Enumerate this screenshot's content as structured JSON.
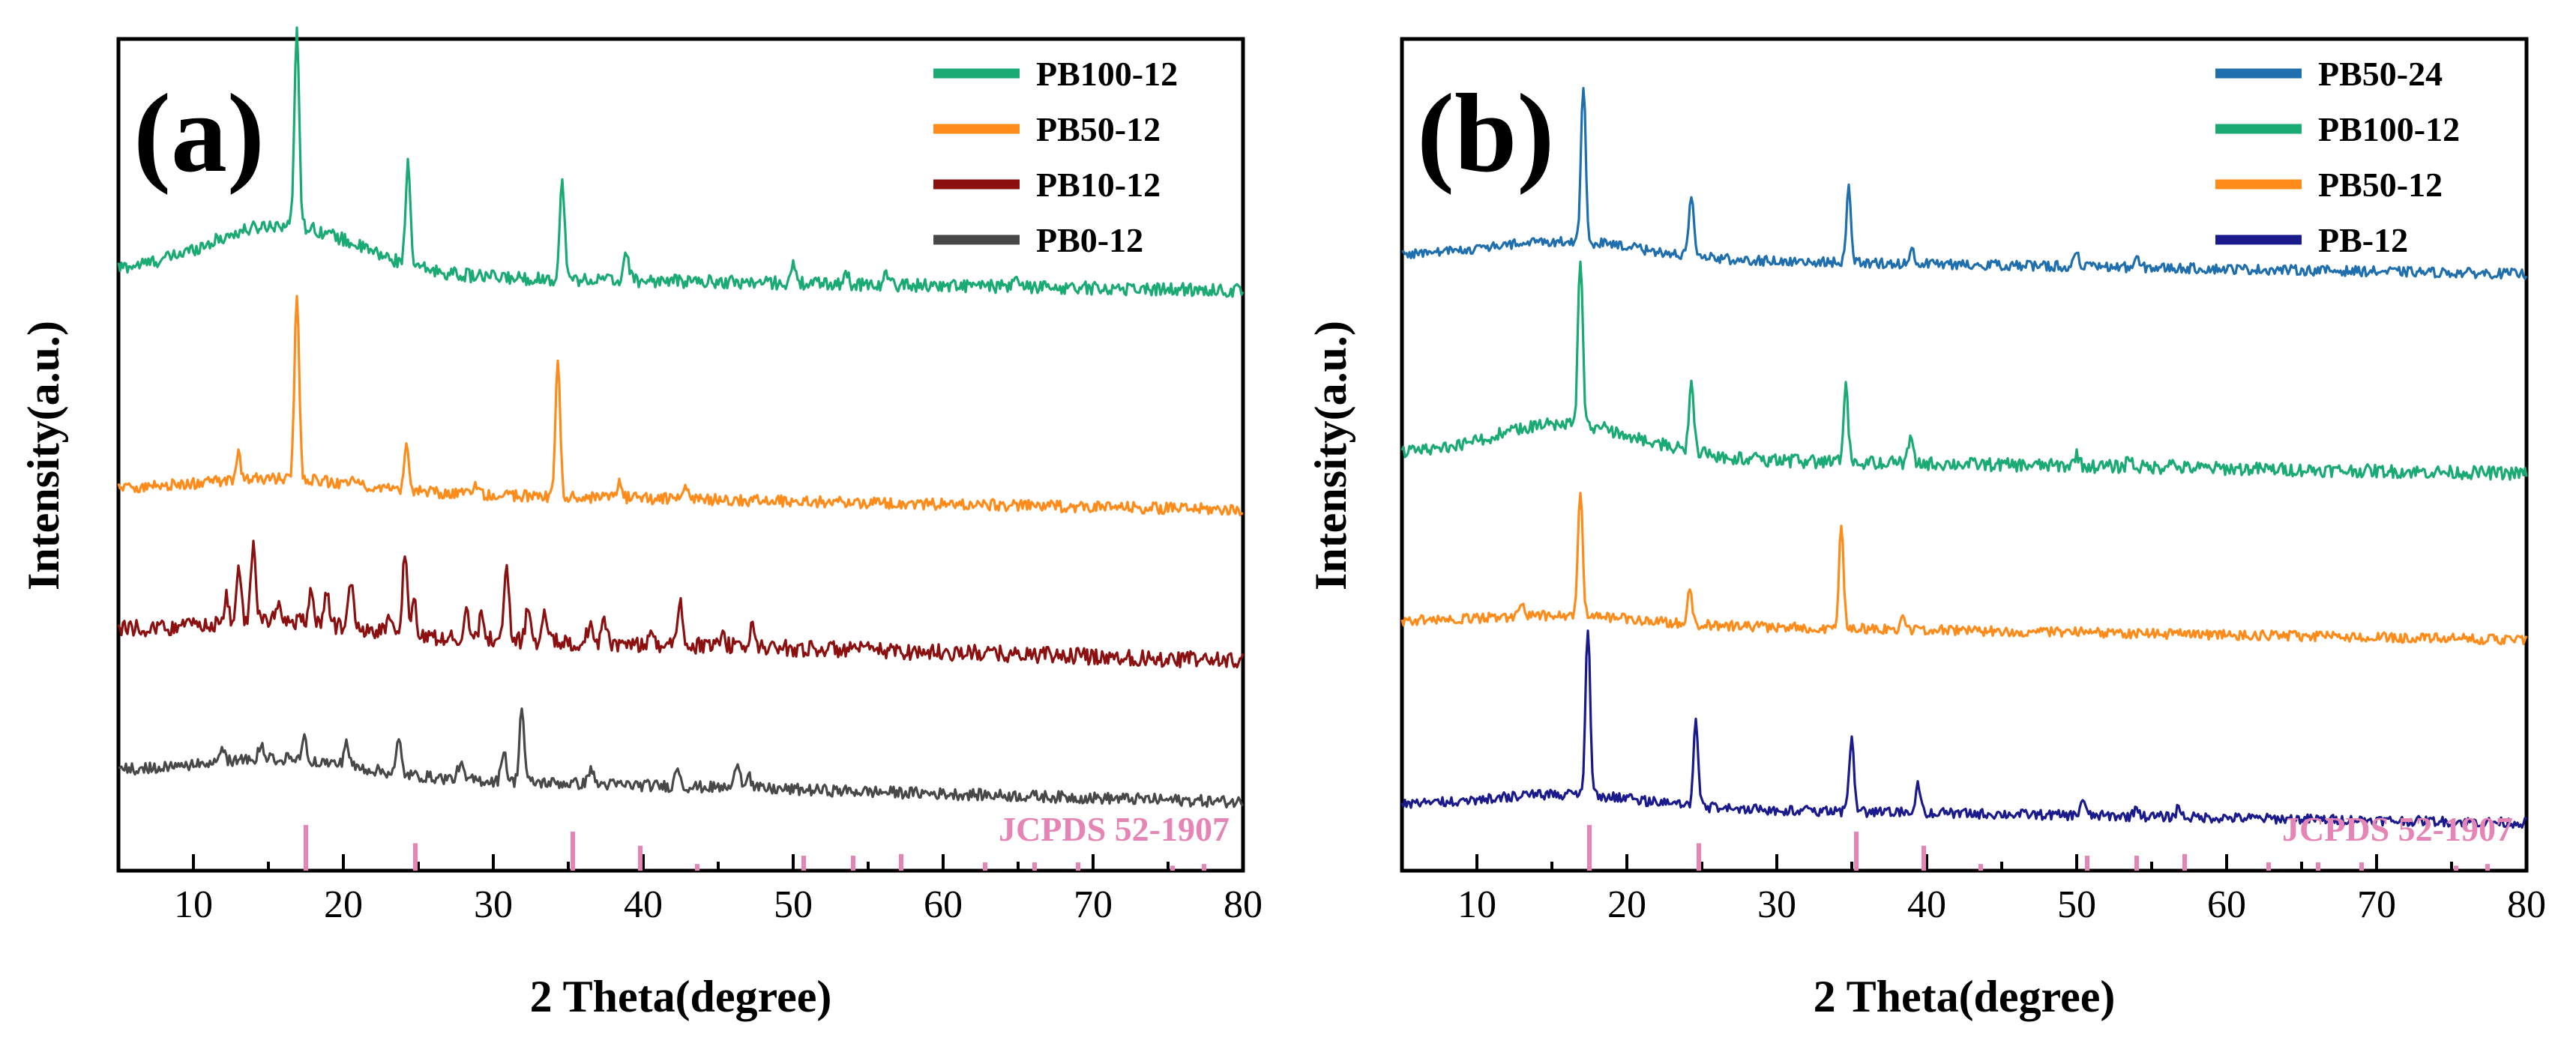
{
  "chart_data": [
    {
      "type": "line",
      "panel_label": "(a)",
      "title": "",
      "xlabel": "2 Theta(degree)",
      "ylabel": "Intensity(a.u.)",
      "xlim": [
        5,
        80
      ],
      "ylim": [
        0,
        100
      ],
      "x_ticks": [
        "10",
        "20",
        "30",
        "40",
        "50",
        "60",
        "70",
        "80"
      ],
      "legend_position": "top-right",
      "series": [
        {
          "name": "PB100-12",
          "color": "#1aaa73",
          "baseline": 72,
          "slope": 0.03,
          "bump": 6,
          "noise": 0.8,
          "peaks": [
            [
              16.9,
              24
            ],
            [
              24.3,
              12
            ],
            [
              34.6,
              12
            ],
            [
              38.9,
              3.5
            ],
            [
              50.0,
              2
            ],
            [
              53.5,
              1.4
            ],
            [
              56.2,
              1.2
            ],
            [
              65.0,
              1
            ]
          ]
        },
        {
          "name": "PB50-12",
          "color": "#ff8c1a",
          "baseline": 46,
          "slope": 0.035,
          "bump": 1.5,
          "noise": 0.7,
          "peaks": [
            [
              13.0,
              3
            ],
            [
              16.9,
              22
            ],
            [
              20.6,
              1.5
            ],
            [
              24.2,
              5
            ],
            [
              28.8,
              1.5
            ],
            [
              34.3,
              16
            ],
            [
              38.4,
              2
            ],
            [
              42.8,
              1.5
            ]
          ]
        },
        {
          "name": "PB10-12",
          "color": "#8c1010",
          "baseline": 29,
          "slope": 0.05,
          "bump": 1.5,
          "noise": 1.0,
          "peaks": [
            [
              12.2,
              3
            ],
            [
              13.0,
              7
            ],
            [
              14.0,
              10
            ],
            [
              15.6,
              2.5
            ],
            [
              17.9,
              4
            ],
            [
              18.9,
              3.5
            ],
            [
              20.5,
              5.5
            ],
            [
              23.1,
              2
            ],
            [
              24.1,
              10
            ],
            [
              24.7,
              4
            ],
            [
              28.2,
              4
            ],
            [
              29.2,
              2.5
            ],
            [
              30.9,
              9
            ],
            [
              32.3,
              4
            ],
            [
              33.4,
              3
            ],
            [
              36.4,
              2
            ],
            [
              37.4,
              2.5
            ],
            [
              40.5,
              1.5
            ],
            [
              42.5,
              5
            ],
            [
              45.3,
              2
            ],
            [
              47.3,
              2.5
            ]
          ]
        },
        {
          "name": "PB0-12",
          "color": "#484848",
          "baseline": 12,
          "slope": 0.05,
          "bump": 2,
          "noise": 0.7,
          "peaks": [
            [
              12.0,
              1.5
            ],
            [
              14.5,
              1.5
            ],
            [
              17.4,
              3
            ],
            [
              20.2,
              3
            ],
            [
              23.7,
              4
            ],
            [
              27.8,
              2
            ],
            [
              30.7,
              4
            ],
            [
              31.9,
              9
            ],
            [
              36.5,
              2
            ],
            [
              42.3,
              2.5
            ],
            [
              46.3,
              3.5
            ],
            [
              47.0,
              2
            ]
          ]
        }
      ],
      "reference": {
        "label": "JCPDS 52-1907",
        "color": "#e685b5",
        "peaks": [
          [
            17.5,
            5.5
          ],
          [
            24.8,
            3.3
          ],
          [
            35.3,
            4.7
          ],
          [
            39.8,
            3.0
          ],
          [
            43.6,
            0.8
          ],
          [
            50.7,
            1.8
          ],
          [
            54.0,
            1.8
          ],
          [
            57.2,
            2.0
          ],
          [
            62.8,
            1.0
          ],
          [
            66.1,
            1.0
          ],
          [
            69.0,
            1.0
          ],
          [
            75.3,
            0.6
          ],
          [
            77.4,
            0.8
          ]
        ]
      }
    },
    {
      "type": "line",
      "panel_label": "(b)",
      "title": "",
      "xlabel": "2 Theta(degree)",
      "ylabel": "Intensity(a.u.)",
      "xlim": [
        5,
        80
      ],
      "ylim": [
        0,
        100
      ],
      "x_ticks": [
        "10",
        "20",
        "30",
        "40",
        "50",
        "60",
        "70",
        "80"
      ],
      "legend_position": "top-right",
      "series": [
        {
          "name": "PB50-24",
          "color": "#1f6fae",
          "baseline": 74,
          "slope": 0.03,
          "bump": 2,
          "noise": 0.6,
          "peaks": [
            [
              17.1,
              19
            ],
            [
              24.3,
              7
            ],
            [
              34.8,
              9
            ],
            [
              39.0,
              2
            ],
            [
              50.0,
              1.5
            ],
            [
              54.0,
              1
            ]
          ]
        },
        {
          "name": "PB100-12",
          "color": "#1aaa73",
          "baseline": 50,
          "slope": 0.03,
          "bump": 4,
          "noise": 0.8,
          "peaks": [
            [
              16.9,
              20
            ],
            [
              24.3,
              9
            ],
            [
              34.6,
              9
            ],
            [
              38.9,
              3
            ],
            [
              50.0,
              1.5
            ],
            [
              53.5,
              1.2
            ],
            [
              56.2,
              1
            ]
          ]
        },
        {
          "name": "PB50-12",
          "color": "#ff8c1a",
          "baseline": 30,
          "slope": 0.03,
          "bump": 1,
          "noise": 0.6,
          "peaks": [
            [
              13.0,
              1.5
            ],
            [
              16.9,
              15
            ],
            [
              24.2,
              4
            ],
            [
              34.3,
              12
            ],
            [
              38.4,
              1.5
            ]
          ]
        },
        {
          "name": "PB-12",
          "color": "#1a1a8c",
          "baseline": 8,
          "slope": 0.03,
          "bump": 1.5,
          "noise": 0.6,
          "peaks": [
            [
              17.4,
              20
            ],
            [
              24.6,
              10
            ],
            [
              35.0,
              9
            ],
            [
              39.4,
              3.5
            ],
            [
              50.4,
              2
            ],
            [
              54.0,
              1.2
            ],
            [
              56.8,
              1.2
            ]
          ]
        }
      ],
      "reference": {
        "label": "JCPDS 52-1907",
        "color": "#e685b5",
        "peaks": [
          [
            17.5,
            5.5
          ],
          [
            24.8,
            3.3
          ],
          [
            35.3,
            4.7
          ],
          [
            39.8,
            3.0
          ],
          [
            43.6,
            0.8
          ],
          [
            50.7,
            1.8
          ],
          [
            54.0,
            1.8
          ],
          [
            57.2,
            2.0
          ],
          [
            62.8,
            1.0
          ],
          [
            66.1,
            1.0
          ],
          [
            69.0,
            1.0
          ],
          [
            75.3,
            0.6
          ],
          [
            77.4,
            0.8
          ]
        ]
      }
    }
  ]
}
